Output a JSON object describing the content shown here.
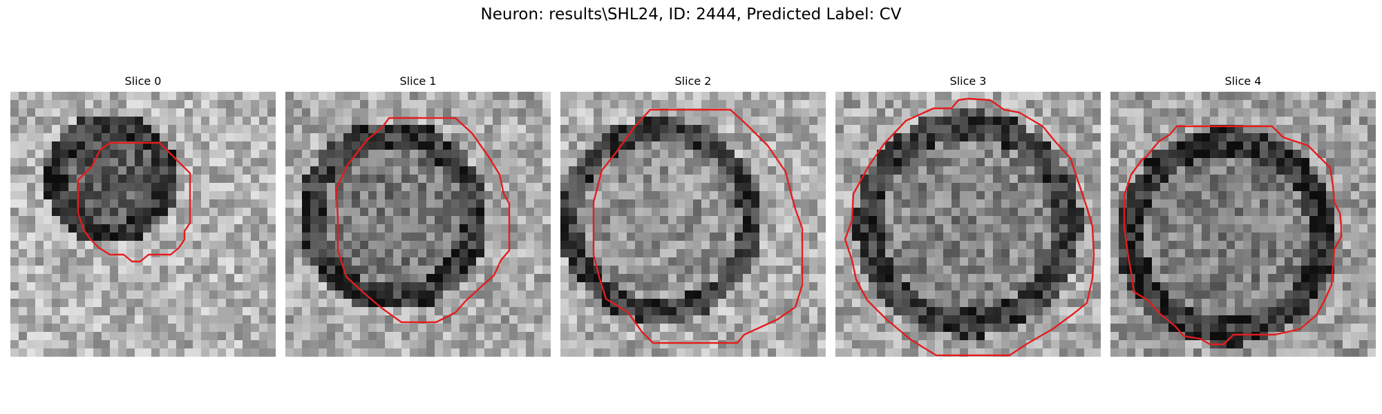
{
  "figure": {
    "title": "Neuron: results\\SHL24, ID: 2444, Predicted Label: CV",
    "contour_color": "#e51c1c",
    "colormap": "gray"
  },
  "panels": [
    {
      "title": "Slice 0",
      "contour": "red-polygon"
    },
    {
      "title": "Slice 1",
      "contour": "red-polygon"
    },
    {
      "title": "Slice 2",
      "contour": "red-polygon"
    },
    {
      "title": "Slice 3",
      "contour": "red-polygon"
    },
    {
      "title": "Slice 4",
      "contour": "red-polygon"
    }
  ]
}
